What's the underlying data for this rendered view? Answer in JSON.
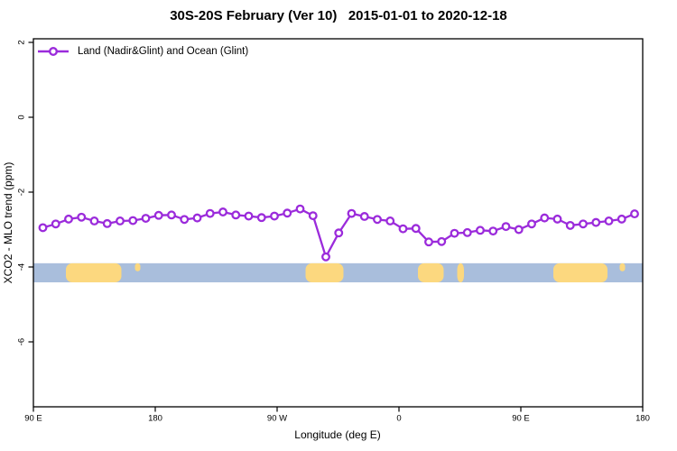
{
  "header": {
    "title": "30S-20S February (Ver 10)   2015-01-01 to 2020-12-18"
  },
  "legend": {
    "label": "Land (Nadir&Glint) and Ocean (Glint)",
    "marker": "open-circle-on-line",
    "position": "top-left"
  },
  "chart_data": {
    "type": "line",
    "title": "30S-20S February (Ver 10)   2015-01-01 to 2020-12-18",
    "xlabel": "Longitude (deg E)",
    "ylabel": "XCO2 - MLO trend (ppm)",
    "xlim": [
      90,
      540
    ],
    "ylim": [
      -7.7,
      2.2
    ],
    "grid": false,
    "x_axis_note": "longitude wraps eastward past the dateline: 90E, 180, 90W, 0, 90E, 180",
    "x_ticks": [
      {
        "lon": 90,
        "label": "90 E"
      },
      {
        "lon": 180,
        "label": "180"
      },
      {
        "lon": 270,
        "label": "90 W"
      },
      {
        "lon": 360,
        "label": "0"
      },
      {
        "lon": 450,
        "label": "90 E"
      },
      {
        "lon": 540,
        "label": "180"
      }
    ],
    "y_ticks": [
      {
        "value": 2,
        "label": "2"
      },
      {
        "value": 0,
        "label": "0"
      },
      {
        "value": -2,
        "label": "-2"
      },
      {
        "value": -4,
        "label": "-4"
      },
      {
        "value": -6,
        "label": "-6"
      }
    ],
    "series": [
      {
        "name": "Land (Nadir&Glint) and Ocean (Glint)",
        "color": "#9B2BDB",
        "marker": "open-circle",
        "x": [
          97.0,
          106.5,
          116.0,
          125.5,
          135.0,
          144.5,
          154.0,
          163.5,
          173.0,
          182.5,
          192.0,
          201.5,
          211.0,
          220.5,
          230.0,
          239.5,
          249.0,
          258.5,
          268.0,
          277.5,
          287.0,
          296.5,
          306.0,
          315.5,
          325.0,
          334.5,
          344.0,
          353.5,
          363.0,
          372.5,
          382.0,
          391.5,
          401.0,
          410.5,
          420.0,
          429.5,
          439.0,
          448.5,
          458.0,
          467.5,
          477.0,
          486.5,
          496.0,
          505.5,
          515.0,
          524.5,
          534.0
        ],
        "y": [
          -2.95,
          -2.85,
          -2.72,
          -2.67,
          -2.77,
          -2.84,
          -2.77,
          -2.76,
          -2.7,
          -2.62,
          -2.61,
          -2.73,
          -2.69,
          -2.57,
          -2.53,
          -2.61,
          -2.64,
          -2.68,
          -2.64,
          -2.56,
          -2.45,
          -2.63,
          -3.73,
          -3.09,
          -2.57,
          -2.65,
          -2.73,
          -2.77,
          -2.98,
          -2.97,
          -3.33,
          -3.32,
          -3.1,
          -3.08,
          -3.02,
          -3.04,
          -2.92,
          -3.0,
          -2.85,
          -2.69,
          -2.72,
          -2.89,
          -2.85,
          -2.81,
          -2.77,
          -2.72,
          -2.58
        ]
      }
    ],
    "map_strip": {
      "description": "land/ocean reference strip for the 30S-20S latitude band",
      "y_range_ppm": [
        -3.9,
        -4.41
      ],
      "ocean_color": "#A9BEDC",
      "land_color": "#FCD87F",
      "land_segments_lon": [
        {
          "from": 114,
          "to": 155,
          "partial": false
        },
        {
          "from": 165,
          "to": 169,
          "partial": true
        },
        {
          "from": 291,
          "to": 319,
          "partial": false
        },
        {
          "from": 374,
          "to": 393,
          "partial": false
        },
        {
          "from": 403,
          "to": 408,
          "partial": false
        },
        {
          "from": 474,
          "to": 514,
          "partial": false
        },
        {
          "from": 523,
          "to": 527,
          "partial": true
        }
      ]
    },
    "colors": {
      "series": "#9B2BDB",
      "axis": "#000000",
      "background": "#FFFFFF"
    }
  }
}
